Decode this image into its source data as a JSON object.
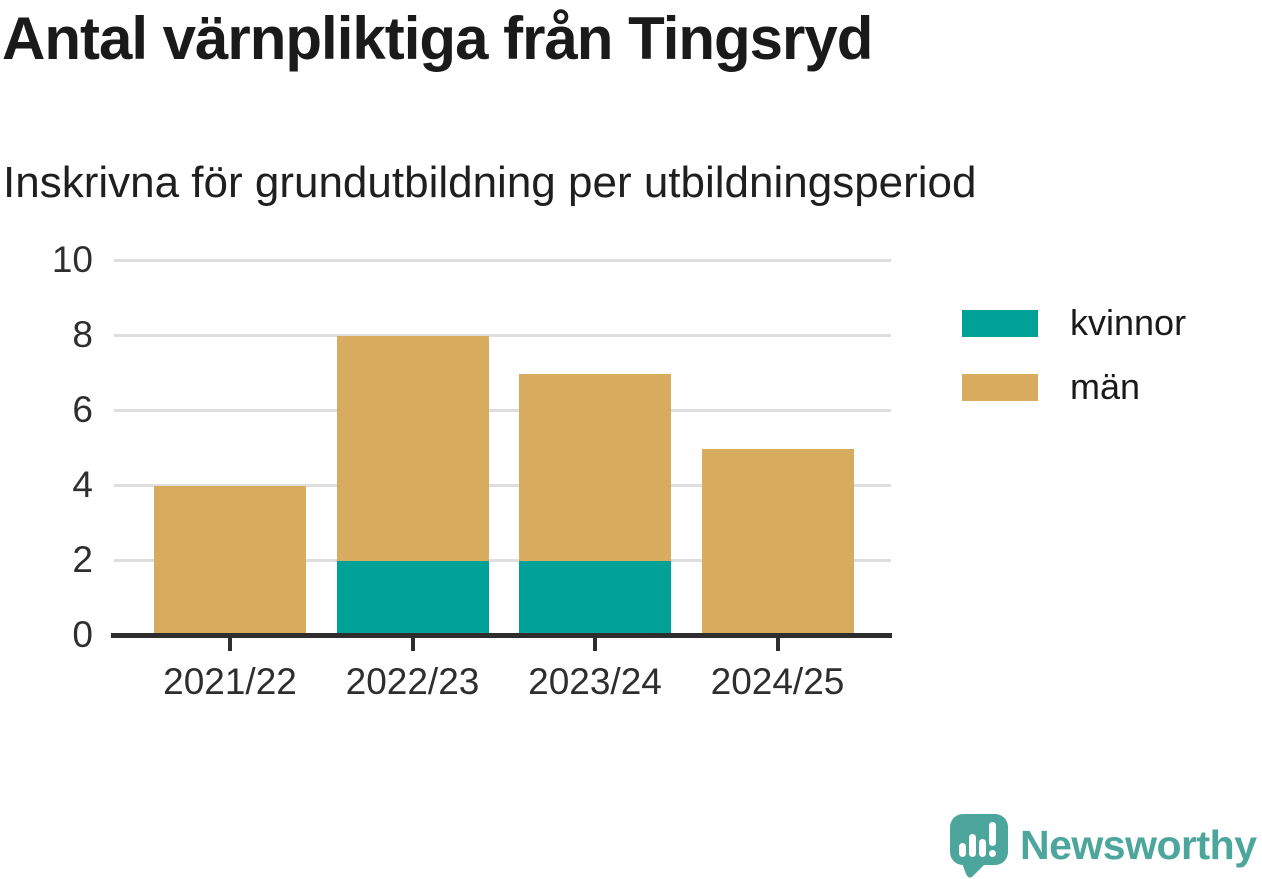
{
  "header": {
    "title": "Antal värnpliktiga från Tingsryd",
    "subtitle": "Inskrivna för grundutbildning per utbildningsperiod"
  },
  "chart_data": {
    "type": "bar",
    "stacked": true,
    "title": "Antal värnpliktiga från Tingsryd",
    "subtitle": "Inskrivna för grundutbildning per utbildningsperiod",
    "categories": [
      "2021/22",
      "2022/23",
      "2023/24",
      "2024/25"
    ],
    "series": [
      {
        "name": "kvinnor",
        "color": "#00A298",
        "values": [
          0,
          2,
          2,
          0
        ]
      },
      {
        "name": "män",
        "color": "#D8AC5E",
        "values": [
          4,
          6,
          5,
          5
        ]
      }
    ],
    "ylim": [
      0,
      10
    ],
    "yticks": [
      0,
      2,
      4,
      6,
      8,
      10
    ],
    "grid": true,
    "legend_position": "right-of-plot"
  },
  "branding": {
    "logo_text": "Newsworthy",
    "logo_color": "#4CA69B"
  },
  "style": {
    "axis_color": "#2E2E2E",
    "gridline_color": "#DEDEDE",
    "text_color": "#1A1A1A"
  }
}
